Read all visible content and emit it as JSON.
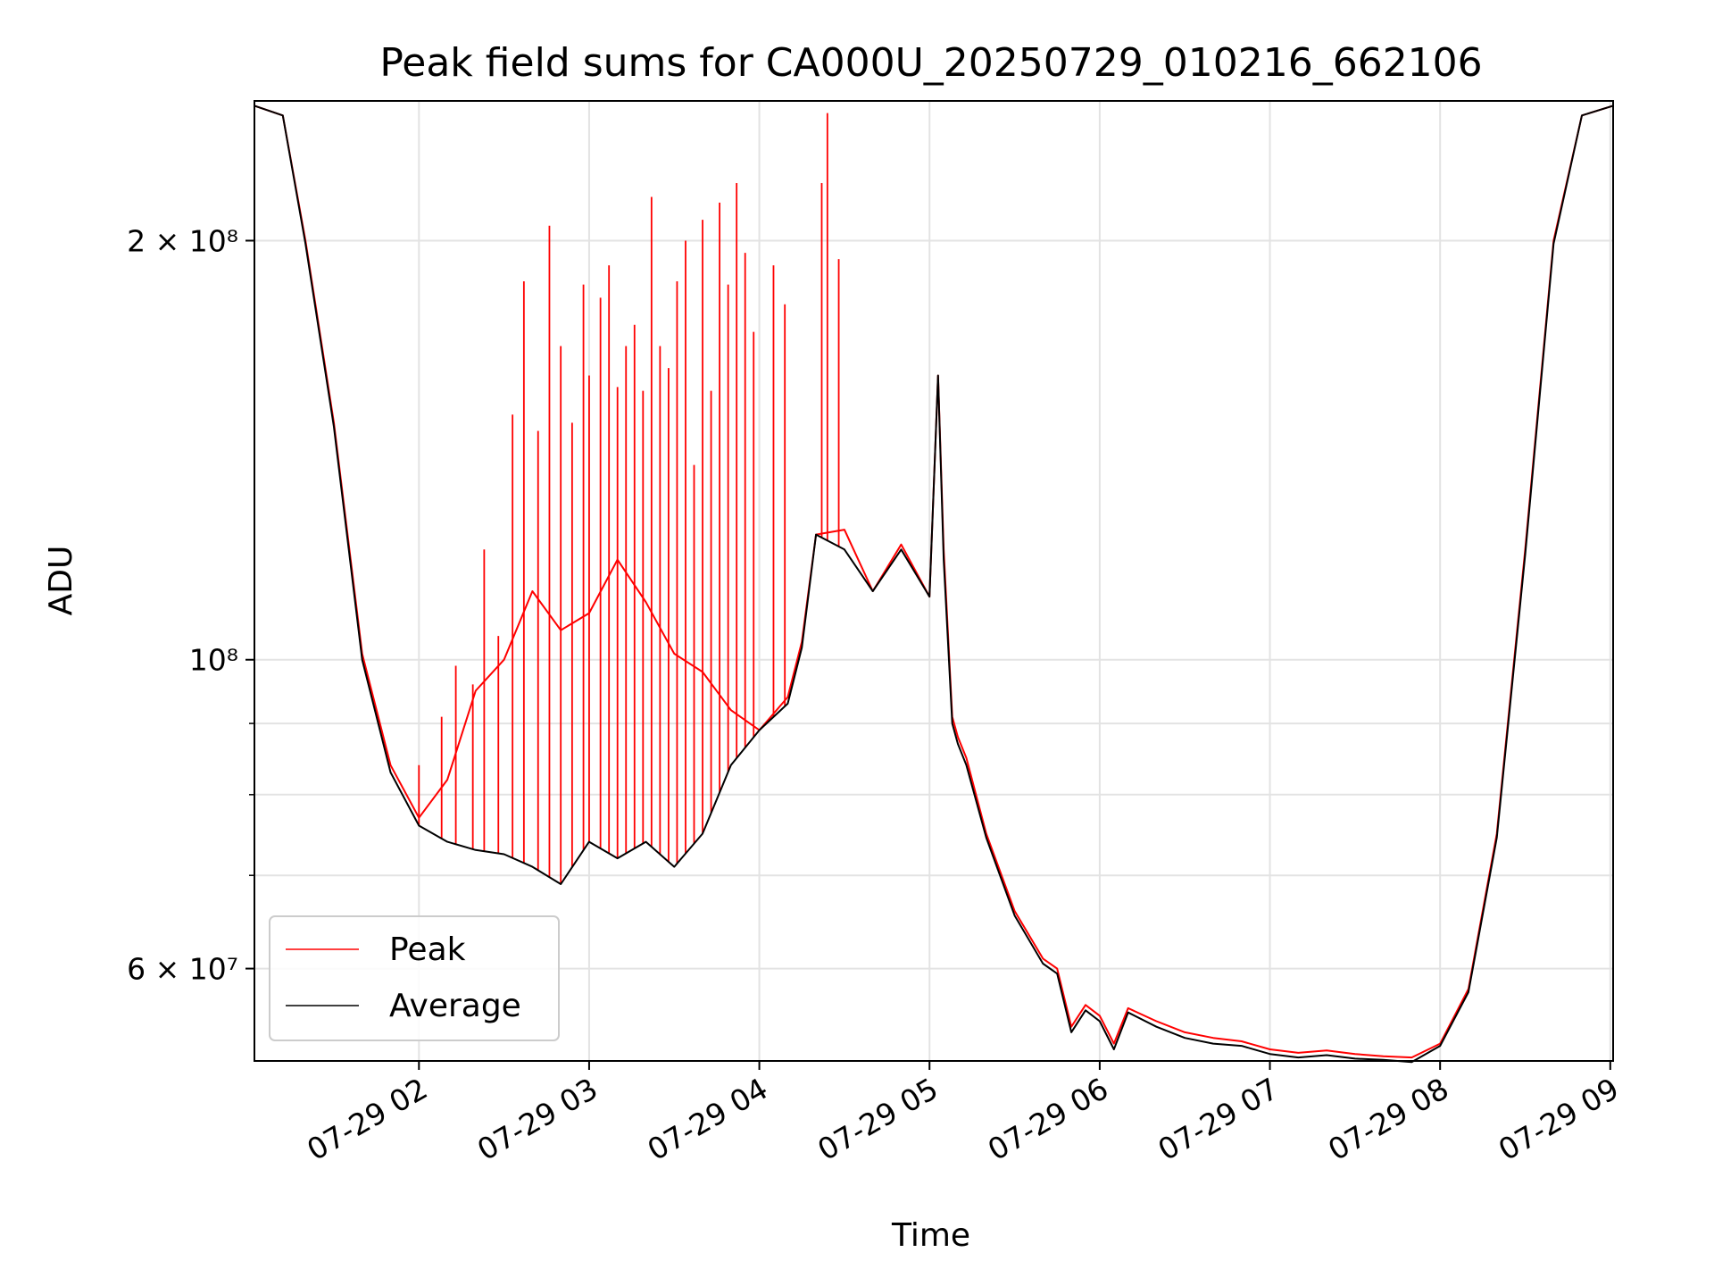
{
  "chart_data": {
    "type": "line",
    "title": "Peak field sums for CA000U_20250729_010216_662106",
    "xlabel": "Time",
    "ylabel": "ADU",
    "y_scale": "log",
    "xlim": [
      "2025-07-29T01:02",
      "2025-07-29T09:01"
    ],
    "ylim": [
      51500000,
      252000000
    ],
    "x_tick_labels": [
      "07-29 02",
      "07-29 03",
      "07-29 04",
      "07-29 05",
      "07-29 06",
      "07-29 07",
      "07-29 08",
      "07-29 09"
    ],
    "x_tick_times": [
      "2025-07-29T02:00",
      "2025-07-29T03:00",
      "2025-07-29T04:00",
      "2025-07-29T05:00",
      "2025-07-29T06:00",
      "2025-07-29T07:00",
      "2025-07-29T08:00",
      "2025-07-29T09:00"
    ],
    "y_major_ticks": [
      {
        "value": 60000000,
        "label": "6 × 10⁷"
      },
      {
        "value": 100000000,
        "label": "10⁸"
      },
      {
        "value": 200000000,
        "label": "2 × 10⁸"
      }
    ],
    "y_minor_ticks": [
      70000000,
      80000000,
      90000000
    ],
    "grid": true,
    "legend_position": "lower-left",
    "series": [
      {
        "name": "Peak",
        "color": "#ff0000",
        "x": [
          "01:02",
          "01:12",
          "01:20",
          "01:30",
          "01:40",
          "01:50",
          "02:00",
          "02:10",
          "02:20",
          "02:30",
          "02:40",
          "02:50",
          "03:00",
          "03:10",
          "03:20",
          "03:30",
          "03:40",
          "03:50",
          "04:00",
          "04:10",
          "04:15",
          "04:20",
          "04:30",
          "04:40",
          "04:50",
          "05:00",
          "05:03",
          "05:05",
          "05:08",
          "05:10",
          "05:13",
          "05:20",
          "05:30",
          "05:40",
          "05:45",
          "05:50",
          "05:55",
          "06:00",
          "06:05",
          "06:10",
          "06:20",
          "06:30",
          "06:40",
          "06:50",
          "07:00",
          "07:10",
          "07:20",
          "07:30",
          "07:40",
          "07:50",
          "08:00",
          "08:10",
          "08:20",
          "08:30",
          "08:40",
          "08:50",
          "09:01"
        ],
        "y": [
          250000000,
          246000000,
          200000000,
          148000000,
          101000000,
          84000000,
          77000000,
          82000000,
          95000000,
          100000000,
          112000000,
          105000000,
          108000000,
          118000000,
          110000000,
          101000000,
          98000000,
          92000000,
          89000000,
          94000000,
          103000000,
          123000000,
          124000000,
          112000000,
          121000000,
          111000000,
          160000000,
          120000000,
          91000000,
          88000000,
          85000000,
          75000000,
          66000000,
          61000000,
          60000000,
          54500000,
          56500000,
          55500000,
          53000000,
          56200000,
          55000000,
          54000000,
          53500000,
          53200000,
          52500000,
          52200000,
          52400000,
          52100000,
          51900000,
          51800000,
          53000000,
          58000000,
          75000000,
          120000000,
          200000000,
          246000000,
          250000000
        ]
      },
      {
        "name": "Average",
        "color": "#000000",
        "x": [
          "01:02",
          "01:12",
          "01:20",
          "01:30",
          "01:40",
          "01:50",
          "02:00",
          "02:10",
          "02:20",
          "02:30",
          "02:40",
          "02:50",
          "03:00",
          "03:10",
          "03:20",
          "03:30",
          "03:40",
          "03:50",
          "04:00",
          "04:10",
          "04:15",
          "04:20",
          "04:30",
          "04:40",
          "04:50",
          "05:00",
          "05:03",
          "05:05",
          "05:08",
          "05:10",
          "05:13",
          "05:20",
          "05:30",
          "05:40",
          "05:45",
          "05:50",
          "05:55",
          "06:00",
          "06:05",
          "06:10",
          "06:20",
          "06:30",
          "06:40",
          "06:50",
          "07:00",
          "07:10",
          "07:20",
          "07:30",
          "07:40",
          "07:50",
          "08:00",
          "08:10",
          "08:20",
          "08:30",
          "08:40",
          "08:50",
          "09:01"
        ],
        "y": [
          250000000,
          246000000,
          199000000,
          147000000,
          100000000,
          83000000,
          76000000,
          74000000,
          73000000,
          72500000,
          71000000,
          69000000,
          74000000,
          72000000,
          74000000,
          71000000,
          75000000,
          84000000,
          89000000,
          93000000,
          102000000,
          123000000,
          120000000,
          112000000,
          120000000,
          111000000,
          160000000,
          118000000,
          90000000,
          87000000,
          84000000,
          74500000,
          65500000,
          60500000,
          59500000,
          54000000,
          56000000,
          55000000,
          52500000,
          55800000,
          54500000,
          53500000,
          53000000,
          52800000,
          52100000,
          51800000,
          52000000,
          51700000,
          51600000,
          51400000,
          52800000,
          57700000,
          74500000,
          119000000,
          199000000,
          246000000,
          250000000
        ]
      }
    ],
    "peak_spikes": {
      "x": [
        "01:38",
        "02:00",
        "02:08",
        "02:13",
        "02:19",
        "02:23",
        "02:28",
        "02:33",
        "02:37",
        "02:42",
        "02:46",
        "02:50",
        "02:54",
        "02:58",
        "03:00",
        "03:04",
        "03:07",
        "03:10",
        "03:13",
        "03:16",
        "03:19",
        "03:22",
        "03:25",
        "03:28",
        "03:31",
        "03:34",
        "03:37",
        "03:40",
        "03:43",
        "03:46",
        "03:49",
        "03:52",
        "03:55",
        "03:58",
        "04:05",
        "04:09",
        "04:22",
        "04:24",
        "04:28"
      ],
      "y": [
        108000000,
        84000000,
        91000000,
        99000000,
        96000000,
        120000000,
        104000000,
        150000000,
        187000000,
        146000000,
        205000000,
        168000000,
        148000000,
        186000000,
        160000000,
        182000000,
        192000000,
        157000000,
        168000000,
        174000000,
        156000000,
        215000000,
        168000000,
        162000000,
        187000000,
        200000000,
        138000000,
        207000000,
        156000000,
        213000000,
        186000000,
        220000000,
        196000000,
        172000000,
        192000000,
        180000000,
        220000000,
        247000000,
        194000000
      ]
    },
    "legend": [
      {
        "label": "Peak",
        "color": "#ff0000"
      },
      {
        "label": "Average",
        "color": "#000000"
      }
    ]
  }
}
